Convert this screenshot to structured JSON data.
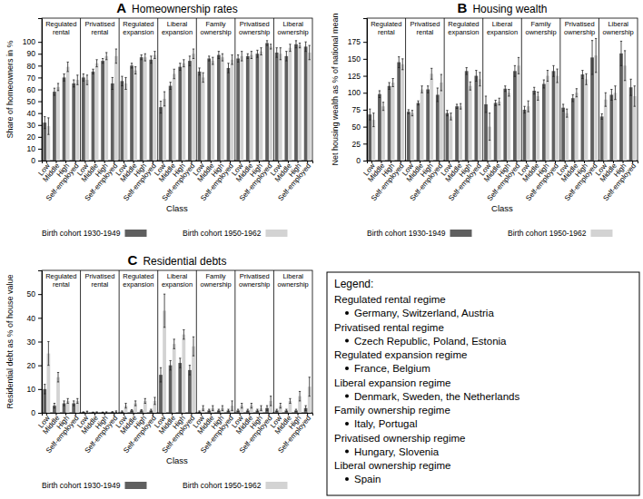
{
  "chart_data": [
    {
      "type": "bar",
      "title": "A",
      "subtitle": "Homeownership rates",
      "x_label": "Class",
      "y_label": "Share of homeowners in %",
      "legend": "bottom",
      "groups": [
        "Regulated rental",
        "Privatised rental",
        "Regulated expansion",
        "Liberal expansion",
        "Family ownership",
        "Privatised ownership",
        "Liberal ownership"
      ],
      "categories": [
        "Low",
        "Middle",
        "High",
        "Self-employed",
        "Low",
        "Middle",
        "High",
        "Self-employed",
        "Low",
        "Middle",
        "High",
        "Self-employed",
        "Low",
        "Middle",
        "High",
        "Self-employed",
        "Low",
        "Middle",
        "High",
        "Self-employed",
        "Low",
        "Middle",
        "High",
        "Self-employed",
        "Low",
        "Middle",
        "High",
        "Self-employed"
      ],
      "series": [
        {
          "name": "Birth cohort 1930-1949",
          "color": "#5f5f5f",
          "values": [
            32,
            58,
            70,
            65,
            70,
            75,
            84,
            65,
            67,
            80,
            87,
            85,
            45,
            63,
            79,
            84,
            75,
            86,
            89,
            78,
            86,
            88,
            90,
            99,
            91,
            88,
            98,
            96
          ],
          "errors": [
            5,
            3,
            3,
            3,
            3,
            2,
            2,
            5,
            4,
            2,
            2,
            3,
            5,
            3,
            3,
            4,
            3,
            2,
            3,
            4,
            3,
            2,
            3,
            2,
            4,
            4,
            3,
            4
          ]
        },
        {
          "name": "Birth cohort 1950-1962",
          "color": "#d3d3d3",
          "values": [
            29,
            62,
            79,
            68,
            68,
            82,
            88,
            88,
            65,
            76,
            87,
            89,
            52,
            73,
            82,
            90,
            70,
            84,
            87,
            85,
            88,
            89,
            92,
            96,
            90,
            95,
            97,
            91
          ],
          "errors": [
            7,
            3,
            4,
            4,
            4,
            3,
            3,
            6,
            5,
            3,
            3,
            3,
            6,
            4,
            3,
            4,
            4,
            3,
            3,
            4,
            4,
            3,
            3,
            2,
            5,
            3,
            2,
            6
          ]
        }
      ],
      "ylim": [
        0,
        120
      ],
      "yticks": [
        0,
        10,
        20,
        30,
        40,
        50,
        60,
        70,
        80,
        90,
        100
      ]
    },
    {
      "type": "bar",
      "title": "B",
      "subtitle": "Housing wealth",
      "x_label": "Class",
      "y_label": "Net housing wealth as % of national mean",
      "legend": "bottom",
      "groups": [
        "Regulated rental",
        "Privatised rental",
        "Regulated expansion",
        "Liberal expansion",
        "Family ownership",
        "Privatised ownership",
        "Liberal ownership"
      ],
      "categories": [
        "Low",
        "Middle",
        "High",
        "Self-employed",
        "Low",
        "Middle",
        "High",
        "Self-employed",
        "Low",
        "Middle",
        "High",
        "Self-employed",
        "Low",
        "Middle",
        "High",
        "Self-employed",
        "Low",
        "Middle",
        "High",
        "Self-employed",
        "Low",
        "Middle",
        "High",
        "Self-employed",
        "Low",
        "Middle",
        "High",
        "Self-employed"
      ],
      "series": [
        {
          "name": "Birth cohort 1930-1949",
          "color": "#5f5f5f",
          "values": [
            68,
            98,
            110,
            145,
            72,
            85,
            105,
            97,
            70,
            80,
            132,
            125,
            83,
            85,
            106,
            132,
            75,
            103,
            113,
            132,
            78,
            92,
            127,
            152,
            65,
            97,
            158,
            108
          ],
          "errors": [
            8,
            5,
            5,
            8,
            3,
            3,
            5,
            10,
            4,
            3,
            5,
            8,
            12,
            4,
            4,
            8,
            5,
            5,
            6,
            8,
            5,
            5,
            6,
            25,
            4,
            8,
            18,
            12
          ]
        },
        {
          "name": "Birth cohort 1950-1962",
          "color": "#d3d3d3",
          "values": [
            60,
            80,
            115,
            142,
            70,
            105,
            128,
            115,
            65,
            80,
            110,
            120,
            50,
            87,
            100,
            140,
            80,
            95,
            125,
            125,
            70,
            100,
            120,
            155,
            90,
            100,
            140,
            95
          ],
          "errors": [
            10,
            6,
            6,
            8,
            4,
            5,
            8,
            12,
            5,
            4,
            6,
            10,
            20,
            5,
            5,
            12,
            8,
            6,
            8,
            10,
            6,
            6,
            8,
            25,
            10,
            10,
            22,
            15
          ]
        }
      ],
      "ylim": [
        0,
        210
      ],
      "yticks": [
        0,
        25,
        50,
        75,
        100,
        125,
        150,
        175
      ]
    },
    {
      "type": "bar",
      "title": "C",
      "subtitle": "Residential debts",
      "x_label": "Class",
      "y_label": "Residential debt as % of house value",
      "legend": "bottom",
      "groups": [
        "Regulated rental",
        "Privatised rental",
        "Regulated expansion",
        "Liberal expansion",
        "Family ownership",
        "Privatised ownership",
        "Liberal ownership"
      ],
      "categories": [
        "Low",
        "Middle",
        "High",
        "Self-employed",
        "Low",
        "Middle",
        "High",
        "Self-employed",
        "Low",
        "Middle",
        "High",
        "Self-employed",
        "Low",
        "Middle",
        "High",
        "Self-employed",
        "Low",
        "Middle",
        "High",
        "Self-employed",
        "Low",
        "Middle",
        "High",
        "Self-employed",
        "Low",
        "Middle",
        "High",
        "Self-employed"
      ],
      "series": [
        {
          "name": "Birth cohort 1930-1949",
          "color": "#5f5f5f",
          "values": [
            10,
            3,
            4,
            4,
            0.3,
            0.2,
            0.2,
            0.3,
            0.5,
            1,
            1,
            1,
            16,
            20,
            21,
            18,
            0.5,
            1,
            1,
            1,
            1,
            1,
            1,
            2,
            1,
            1,
            1,
            2
          ],
          "errors": [
            2,
            1,
            1,
            1,
            0.1,
            0.1,
            0.1,
            0.2,
            0.3,
            0.3,
            0.3,
            0.5,
            3,
            2,
            2,
            2,
            0.3,
            0.5,
            0.5,
            0.5,
            0.5,
            0.5,
            0.5,
            1,
            0.5,
            0.5,
            0.5,
            1
          ]
        },
        {
          "name": "Birth cohort 1950-1962",
          "color": "#d3d3d3",
          "values": [
            25,
            15,
            5,
            5,
            0.5,
            0.3,
            0.3,
            0.5,
            3,
            4,
            5,
            5,
            43,
            29,
            33,
            28,
            2,
            2,
            2,
            3,
            3,
            3,
            2,
            5,
            3,
            5,
            7,
            11
          ],
          "errors": [
            5,
            2,
            1,
            1,
            0.2,
            0.1,
            0.1,
            0.3,
            1,
            1,
            1,
            1.5,
            7,
            2,
            2,
            4,
            1,
            1,
            1,
            2,
            1,
            1,
            1,
            2,
            1,
            1,
            2,
            4
          ]
        }
      ],
      "ylim": [
        0,
        60
      ],
      "yticks": [
        0,
        10,
        20,
        30,
        40,
        50
      ]
    }
  ],
  "legend_box": {
    "title": "Legend:",
    "items": [
      {
        "name": "Regulated rental regime",
        "countries": "Germany, Switzerland, Austria"
      },
      {
        "name": "Privatised rental regime",
        "countries": "Czech Republic, Poland, Estonia"
      },
      {
        "name": "Regulated expansion regime",
        "countries": "France, Belgium"
      },
      {
        "name": "Liberal expansion regime",
        "countries": "Denmark, Sweden, the Netherlands"
      },
      {
        "name": "Family ownership regime",
        "countries": "Italy, Portugal"
      },
      {
        "name": "Privatised ownership regime",
        "countries": "Hungary, Slovenia"
      },
      {
        "name": "Liberal ownership regime",
        "countries": "Spain"
      }
    ]
  }
}
